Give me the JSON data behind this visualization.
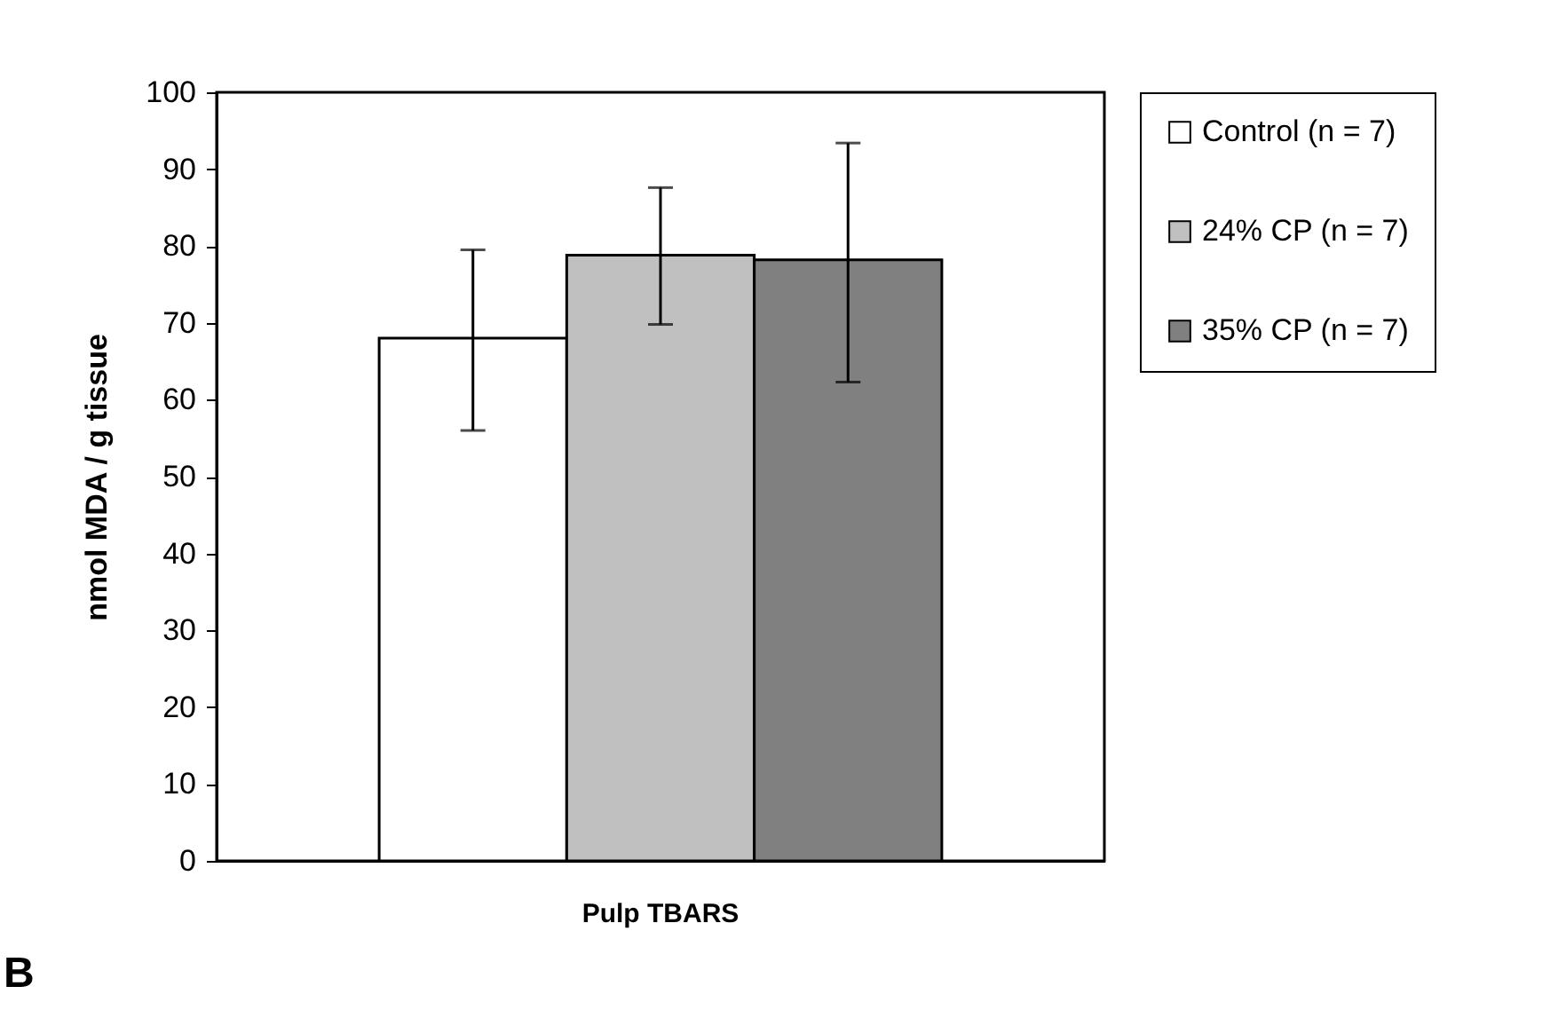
{
  "chart_data": {
    "type": "bar",
    "categories": [
      "Pulp TBARS"
    ],
    "ylabel": "nmol MDA / g tissue",
    "ylim": [
      0,
      100
    ],
    "yticks": [
      0,
      10,
      20,
      30,
      40,
      50,
      60,
      70,
      80,
      90,
      100
    ],
    "legend": "right",
    "grid": false,
    "series": [
      {
        "name": "Control (n = 7)",
        "color": "#ffffff",
        "values": [
          68
        ],
        "errors": [
          [
            56,
            79.5
          ]
        ]
      },
      {
        "name": "24% CP (n = 7)",
        "color": "#c0c0c0",
        "values": [
          78.8
        ],
        "errors": [
          [
            69.8,
            87.6
          ]
        ]
      },
      {
        "name": "35% CP (n = 7)",
        "color": "#808080",
        "values": [
          78.2
        ],
        "errors": [
          [
            62.3,
            93.4
          ]
        ]
      }
    ],
    "annotations": [
      "B"
    ]
  }
}
